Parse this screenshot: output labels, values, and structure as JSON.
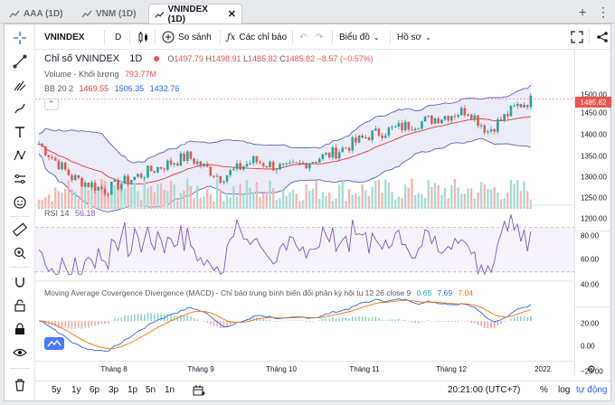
{
  "tabs": [
    {
      "label": "AAA (1D)",
      "active": false
    },
    {
      "label": "VNM (1D)",
      "active": false
    },
    {
      "label": "VNINDEX (1D)",
      "active": true
    }
  ],
  "toolbar": {
    "symbol": "VNINDEX",
    "interval": "D",
    "compare": "So sánh",
    "indicators": "Các chỉ báo",
    "chart_type": "Biểu đồ",
    "profile": "Hồ sơ"
  },
  "legend": {
    "title": "Chỉ số VNINDEX",
    "interval": "1D",
    "open_label": "O",
    "open": "1497.79",
    "high_label": "H",
    "high": "1498.91",
    "low_label": "L",
    "low": "1485.82",
    "close_label": "C",
    "close": "1485.82",
    "change": "−8.57 (−0.57%)",
    "volume_label": "Volume - Khối lượng",
    "volume": "793.77M",
    "bb_label": "BB 20 2",
    "bb_mid": "1469.55",
    "bb_up": "1506.35",
    "bb_low": "1432.76",
    "rsi_label": "RSI 14",
    "rsi": "56.18",
    "macd_label": "Moving Average Covergence Divergence (MACD) - Chỉ báo trung bình biến đổi phân kỳ hội tụ 12 26 close 9",
    "macd_hist": "0.65",
    "macd": "7.69",
    "macd_signal": "7.04"
  },
  "price_axis": [
    "1500.00",
    "1450.00",
    "1400.00",
    "1350.00",
    "1300.00",
    "1250.00",
    "1200.00"
  ],
  "price_tag": "1485.82",
  "rsi_axis": [
    "80.00",
    "60.00",
    "40.00"
  ],
  "macd_axis": [
    "20.00",
    "0.00",
    "−20.00"
  ],
  "time_axis": [
    "Tháng 8",
    "Tháng 9",
    "Tháng 10",
    "Tháng 11",
    "Tháng 12",
    "2022"
  ],
  "bottom": {
    "ranges": [
      "5y",
      "1y",
      "6p",
      "3p",
      "1p",
      "5n",
      "1n"
    ],
    "time": "20:21:00 (UTC+7)",
    "percent": "%",
    "log": "log",
    "auto": "tự động"
  },
  "colors": {
    "up": "#26a69a",
    "down": "#ef5350",
    "bb": "#5b5fc7",
    "ma": "#e53935",
    "rsi": "#7e57c2",
    "macd": "#2962ff",
    "signal": "#ff6d00"
  }
}
